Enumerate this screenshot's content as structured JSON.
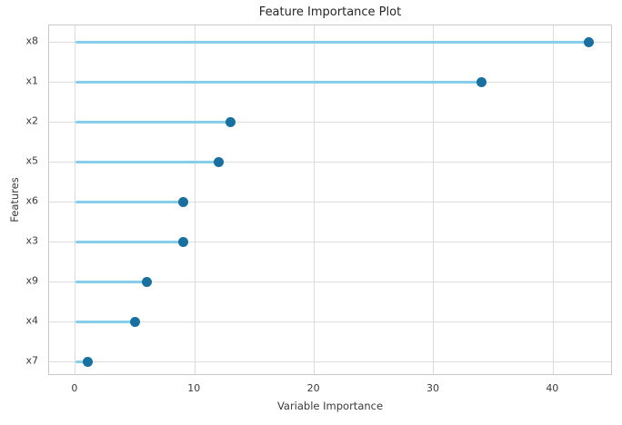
{
  "chart_data": {
    "type": "scatter",
    "variant": "lollipop-horizontal",
    "title": "Feature Importance Plot",
    "xlabel": "Variable Importance",
    "ylabel": "Features",
    "categories": [
      "x8",
      "x1",
      "x2",
      "x5",
      "x6",
      "x3",
      "x9",
      "x4",
      "x7"
    ],
    "values": [
      43,
      34,
      13,
      12,
      9,
      9,
      6,
      5,
      1
    ],
    "xticks": [
      0,
      10,
      20,
      30,
      40
    ],
    "xlim": [
      -2.2,
      45.0
    ],
    "grid": true,
    "legend": false,
    "colors": {
      "stem": "#87ceeb",
      "dot": "#17709f",
      "grid": "#dcdcdc",
      "spine": "#c9c9c9",
      "text": "#3a3a3a",
      "title_text": "#262626",
      "background": "#ffffff"
    }
  }
}
